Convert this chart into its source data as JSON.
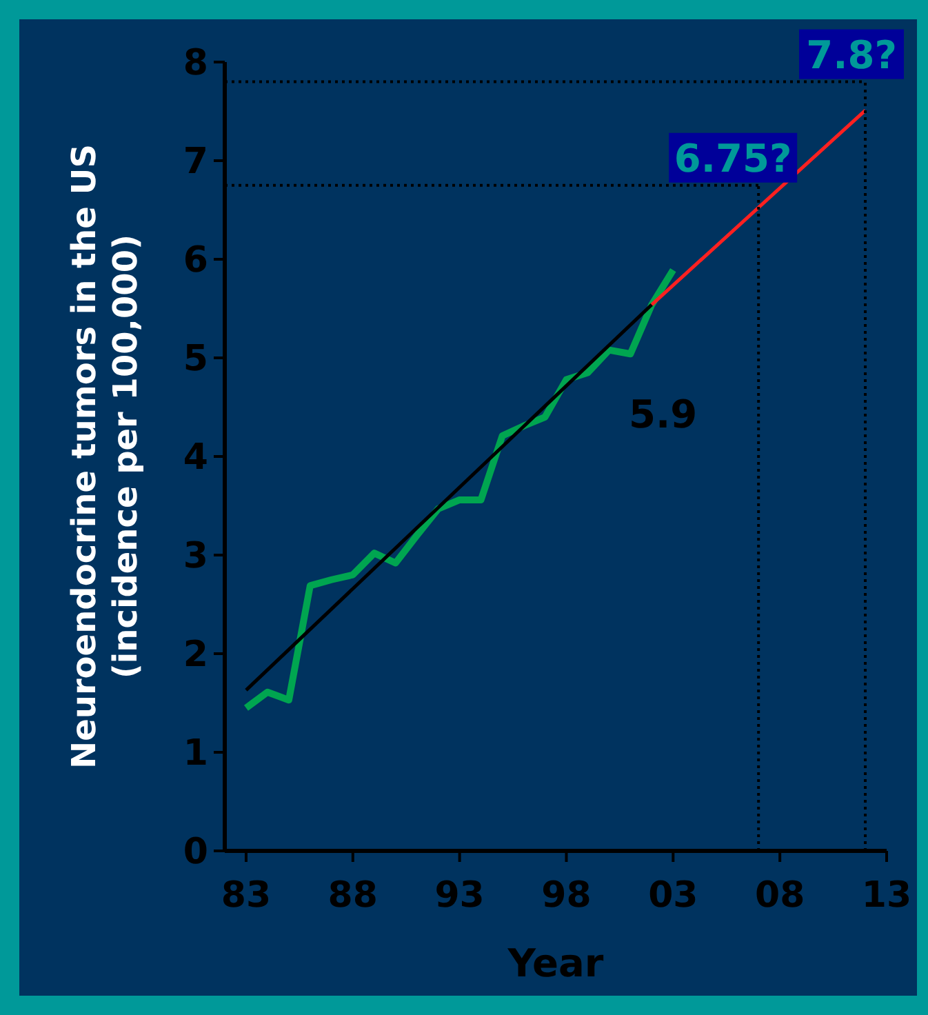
{
  "chart_data": {
    "type": "line",
    "xlabel": "Year",
    "ylabel": "Neuroendocrine tumors in the US\n(incidence per 100,000)",
    "xlim": [
      1982,
      2013
    ],
    "xticks": [
      {
        "value": 1983,
        "label": "83"
      },
      {
        "value": 1988,
        "label": "88"
      },
      {
        "value": 1993,
        "label": "93"
      },
      {
        "value": 1998,
        "label": "98"
      },
      {
        "value": 2003,
        "label": "03"
      },
      {
        "value": 2008,
        "label": "08"
      },
      {
        "value": 2013,
        "label": "13"
      }
    ],
    "ylim": [
      0,
      8
    ],
    "yticks": [
      0,
      1,
      2,
      3,
      4,
      5,
      6,
      7,
      8
    ],
    "marker": "none",
    "line_style": "solid",
    "series": [
      {
        "color": "#00a550",
        "x": [
          1983,
          1984,
          1985,
          1986,
          1987,
          1988,
          1989,
          1990,
          1991,
          1992,
          1993,
          1994,
          1995,
          1996,
          1997,
          1998,
          1999,
          2000,
          2001,
          2002,
          2003
        ],
        "values": [
          1.45,
          1.61,
          1.53,
          2.69,
          2.75,
          2.8,
          3.02,
          2.92,
          3.2,
          3.47,
          3.56,
          3.56,
          4.21,
          4.31,
          4.4,
          4.78,
          4.85,
          5.08,
          5.04,
          5.54,
          5.89
        ]
      },
      {
        "color": "#000000",
        "x": [
          1983,
          2002
        ],
        "values": [
          1.63,
          5.54
        ]
      },
      {
        "color": "#ff2020",
        "x": [
          2002,
          2012
        ],
        "values": [
          5.54,
          7.51
        ]
      }
    ],
    "ref_lines": [
      {
        "axis": "y",
        "value": 6.75,
        "label": "6.75?",
        "line_style": "dotted",
        "color": "#000000"
      },
      {
        "axis": "y",
        "value": 7.8,
        "label": "7.8?",
        "line_style": "dotted",
        "color": "#000000"
      },
      {
        "axis": "x",
        "value": 2007,
        "line_style": "dotted",
        "color": "#000000"
      },
      {
        "axis": "x",
        "value": 2012,
        "line_style": "dotted",
        "color": "#000000"
      }
    ],
    "annotations": [
      "5.9"
    ]
  }
}
